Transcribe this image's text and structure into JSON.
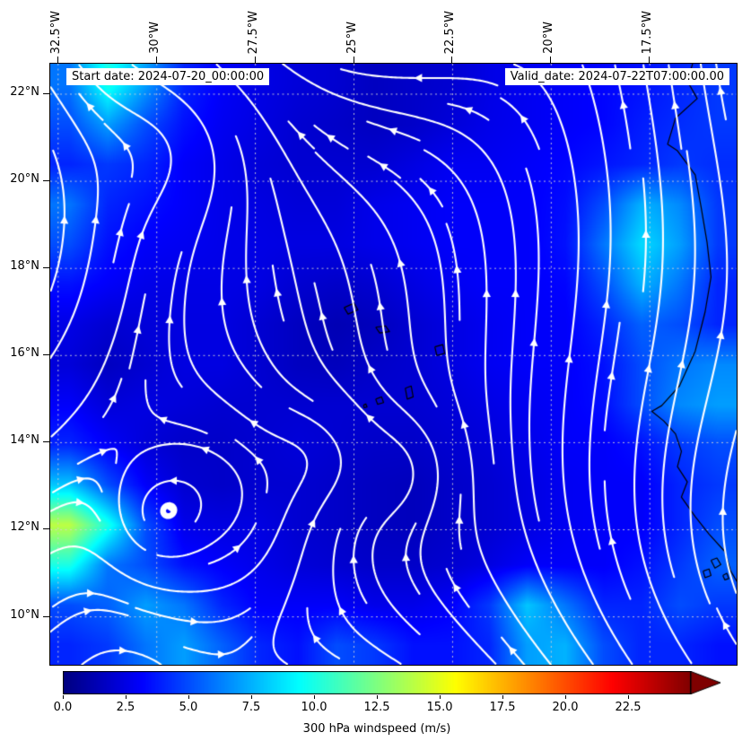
{
  "figure": {
    "background": "#ffffff",
    "annotations": {
      "start_date": "Start date: 2024-07-20_00:00:00",
      "valid_date": "Valid_date: 2024-07-22T07:00:00.00"
    }
  },
  "chart_data": {
    "type": "heatmap",
    "subtype": "windspeed-map-with-streamlines",
    "title": "",
    "colorbar": {
      "label": "300 hPa windspeed (m/s)",
      "vmin": 0,
      "vmax": 25,
      "colormap": "jet",
      "extend": "max",
      "ticks": [
        0.0,
        2.5,
        5.0,
        7.5,
        10.0,
        12.5,
        15.0,
        17.5,
        20.0,
        22.5
      ],
      "tick_labels": [
        "0.0",
        "2.5",
        "5.0",
        "7.5",
        "10.0",
        "12.5",
        "15.0",
        "17.5",
        "20.0",
        "22.5"
      ]
    },
    "x_axis": {
      "side": "top",
      "range": [
        -32.7,
        -15.3
      ],
      "ticks": [
        -32.5,
        -30,
        -27.5,
        -25,
        -22.5,
        -20,
        -17.5
      ],
      "tick_labels": [
        "32.5°W",
        "30°W",
        "27.5°W",
        "25°W",
        "22.5°W",
        "20°W",
        "17.5°W"
      ]
    },
    "y_axis": {
      "side": "left",
      "range": [
        8.9,
        22.7
      ],
      "ticks": [
        22,
        20,
        18,
        16,
        14,
        12,
        10
      ],
      "tick_labels": [
        "22°N",
        "20°N",
        "18°N",
        "16°N",
        "14°N",
        "12°N",
        "10°N"
      ]
    },
    "grid": {
      "show": true,
      "style": "dashed",
      "color": "#d2d2d2"
    },
    "windspeed_grid": {
      "units": "m/s",
      "lon_range": [
        -32.7,
        -15.3
      ],
      "lat_range": [
        8.9,
        22.7
      ],
      "values_rows_north_to_south": [
        [
          6,
          10,
          7,
          4,
          3,
          2.5,
          2.2,
          2,
          1.6,
          1.8,
          2,
          2.5,
          2.8,
          3,
          3.2,
          3.5,
          4,
          4.5
        ],
        [
          5,
          7,
          5,
          3.5,
          2.8,
          2.4,
          2,
          1.8,
          1.6,
          1.8,
          2.2,
          2.6,
          2.8,
          3,
          3.2,
          3.8,
          4.2,
          4.5
        ],
        [
          4,
          4.5,
          4,
          3,
          2.6,
          2.2,
          2,
          2,
          2,
          2.4,
          2.8,
          2.8,
          3,
          3.2,
          3.6,
          4,
          4.5,
          4.2
        ],
        [
          6,
          4,
          3.5,
          3,
          2.6,
          2.4,
          2.2,
          2.2,
          2.6,
          2.8,
          3,
          3,
          3,
          3.4,
          5,
          7.5,
          6.5,
          4.5
        ],
        [
          5,
          3.5,
          3,
          2.8,
          2.6,
          2.5,
          2.4,
          2.4,
          2.6,
          2.8,
          3,
          3,
          3,
          3.5,
          6,
          8.5,
          7,
          4.5
        ],
        [
          3.5,
          3,
          2.6,
          2.5,
          2.5,
          2.4,
          2,
          1.8,
          2,
          2.4,
          2.8,
          3,
          3,
          3.2,
          5,
          7.5,
          6,
          4
        ],
        [
          2.5,
          2,
          2.2,
          2.4,
          2.4,
          2,
          1.6,
          1.3,
          1.5,
          2,
          2.4,
          2.8,
          3,
          3,
          4,
          5.5,
          5,
          4
        ],
        [
          2.2,
          1.6,
          2,
          2.4,
          2.4,
          2,
          1.6,
          1.5,
          1.8,
          2,
          2.4,
          2.8,
          3,
          3,
          3.5,
          5,
          6,
          6.5
        ],
        [
          3,
          2.2,
          2.4,
          2.2,
          2,
          2,
          2,
          2,
          2,
          2,
          2.2,
          2.5,
          2.8,
          3,
          3.4,
          5,
          6.5,
          7
        ],
        [
          4,
          3,
          2.2,
          1.8,
          1.8,
          2,
          2.2,
          2,
          1.8,
          1.8,
          2,
          2.2,
          2.6,
          3,
          3,
          3.5,
          4.5,
          5
        ],
        [
          8,
          5,
          3,
          2,
          1.8,
          2,
          2,
          1.8,
          1.6,
          1.5,
          1.8,
          2,
          2.4,
          2.8,
          3,
          3,
          4,
          4.5
        ],
        [
          14,
          10,
          5,
          2.6,
          2.4,
          2.4,
          2,
          1.8,
          1.6,
          1.5,
          1.8,
          2,
          2.4,
          2.8,
          3,
          3,
          4,
          5
        ],
        [
          10,
          6,
          5,
          3.5,
          3,
          2.6,
          2.2,
          2,
          1.8,
          1.8,
          2,
          2.4,
          3,
          3,
          3,
          3.5,
          4.5,
          5.5
        ],
        [
          5,
          5.5,
          7,
          6,
          4,
          3,
          3,
          3,
          2.6,
          2.6,
          3,
          4.5,
          8,
          6,
          4,
          4,
          5,
          4.5
        ],
        [
          4,
          4.5,
          6,
          7,
          5.5,
          4,
          3.5,
          5,
          4.5,
          3.5,
          3.5,
          4,
          7,
          7.5,
          5,
          4,
          4,
          3.5
        ]
      ]
    },
    "streamlines": {
      "color": "#ffffff",
      "background_flow": {
        "u": 0.1,
        "v": 0.25
      },
      "vortices": [
        {
          "x": -29.3,
          "y": 21.1,
          "amp": -2.0,
          "sig": 1.4
        },
        {
          "x": -30.0,
          "y": 12.2,
          "amp": -1.1,
          "sig": 0.85
        },
        {
          "x": -28.2,
          "y": 12.8,
          "amp": -2.4,
          "sig": 1.8
        },
        {
          "x": -25.8,
          "y": 13.8,
          "amp": -1.1,
          "sig": 0.9
        },
        {
          "x": -23.6,
          "y": 13.4,
          "amp": -1.3,
          "sig": 1.0
        },
        {
          "x": -9.0,
          "y": 26.0,
          "amp": 10.0,
          "sig": 7.0
        },
        {
          "x": -20.0,
          "y": 1.5,
          "amp": -10.0,
          "sig": 6.0
        },
        {
          "x": -26.0,
          "y": 27.0,
          "amp": 9.0,
          "sig": 3.5
        },
        {
          "x": -14.5,
          "y": 9.0,
          "amp": 7.0,
          "sig": 5.5
        },
        {
          "x": -36.0,
          "y": 19.0,
          "amp": -6.0,
          "sig": 4.0
        }
      ]
    },
    "coastlines": {
      "color": "#000000",
      "segments": [
        [
          [
            -16.4,
            22.75
          ],
          [
            -16.55,
            22.3
          ],
          [
            -16.3,
            21.9
          ],
          [
            -16.85,
            21.45
          ],
          [
            -17.05,
            20.85
          ],
          [
            -16.8,
            20.7
          ],
          [
            -16.35,
            20.15
          ],
          [
            -16.2,
            19.4
          ],
          [
            -16.05,
            18.6
          ],
          [
            -15.95,
            17.8
          ],
          [
            -16.1,
            17.0
          ],
          [
            -16.35,
            16.1
          ],
          [
            -16.75,
            15.3
          ],
          [
            -17.2,
            14.85
          ],
          [
            -17.45,
            14.72
          ],
          [
            -17.15,
            14.5
          ],
          [
            -16.85,
            14.2
          ],
          [
            -16.7,
            13.8
          ],
          [
            -16.8,
            13.45
          ],
          [
            -16.55,
            13.1
          ],
          [
            -16.7,
            12.75
          ],
          [
            -16.35,
            12.3
          ],
          [
            -16.0,
            11.9
          ],
          [
            -15.6,
            11.5
          ],
          [
            -15.45,
            11.05
          ],
          [
            -15.25,
            10.75
          ]
        ],
        [
          [
            -15.95,
            11.3
          ],
          [
            -15.8,
            11.35
          ],
          [
            -15.7,
            11.2
          ],
          [
            -15.85,
            11.12
          ],
          [
            -15.95,
            11.3
          ]
        ],
        [
          [
            -16.15,
            11.05
          ],
          [
            -16.0,
            11.1
          ],
          [
            -15.95,
            10.95
          ],
          [
            -16.1,
            10.9
          ],
          [
            -16.15,
            11.05
          ]
        ],
        [
          [
            -15.65,
            10.95
          ],
          [
            -15.55,
            11.0
          ],
          [
            -15.5,
            10.88
          ],
          [
            -15.6,
            10.85
          ],
          [
            -15.65,
            10.95
          ]
        ],
        [
          [
            -25.25,
            17.1
          ],
          [
            -25.0,
            17.2
          ],
          [
            -24.9,
            17.05
          ],
          [
            -25.15,
            16.95
          ],
          [
            -25.25,
            17.1
          ]
        ],
        [
          [
            -24.45,
            16.65
          ],
          [
            -24.2,
            16.68
          ],
          [
            -24.1,
            16.55
          ],
          [
            -24.35,
            16.52
          ],
          [
            -24.45,
            16.65
          ]
        ],
        [
          [
            -22.95,
            16.2
          ],
          [
            -22.75,
            16.25
          ],
          [
            -22.7,
            16.05
          ],
          [
            -22.9,
            16.0
          ],
          [
            -22.95,
            16.2
          ]
        ],
        [
          [
            -23.7,
            15.25
          ],
          [
            -23.55,
            15.3
          ],
          [
            -23.5,
            15.05
          ],
          [
            -23.65,
            15.0
          ],
          [
            -23.7,
            15.25
          ]
        ],
        [
          [
            -24.45,
            15.0
          ],
          [
            -24.3,
            15.05
          ],
          [
            -24.25,
            14.92
          ],
          [
            -24.4,
            14.88
          ],
          [
            -24.45,
            15.0
          ]
        ],
        [
          [
            -24.76,
            14.86
          ],
          [
            -24.7,
            14.89
          ],
          [
            -24.67,
            14.82
          ],
          [
            -24.74,
            14.8
          ],
          [
            -24.76,
            14.86
          ]
        ]
      ]
    }
  }
}
